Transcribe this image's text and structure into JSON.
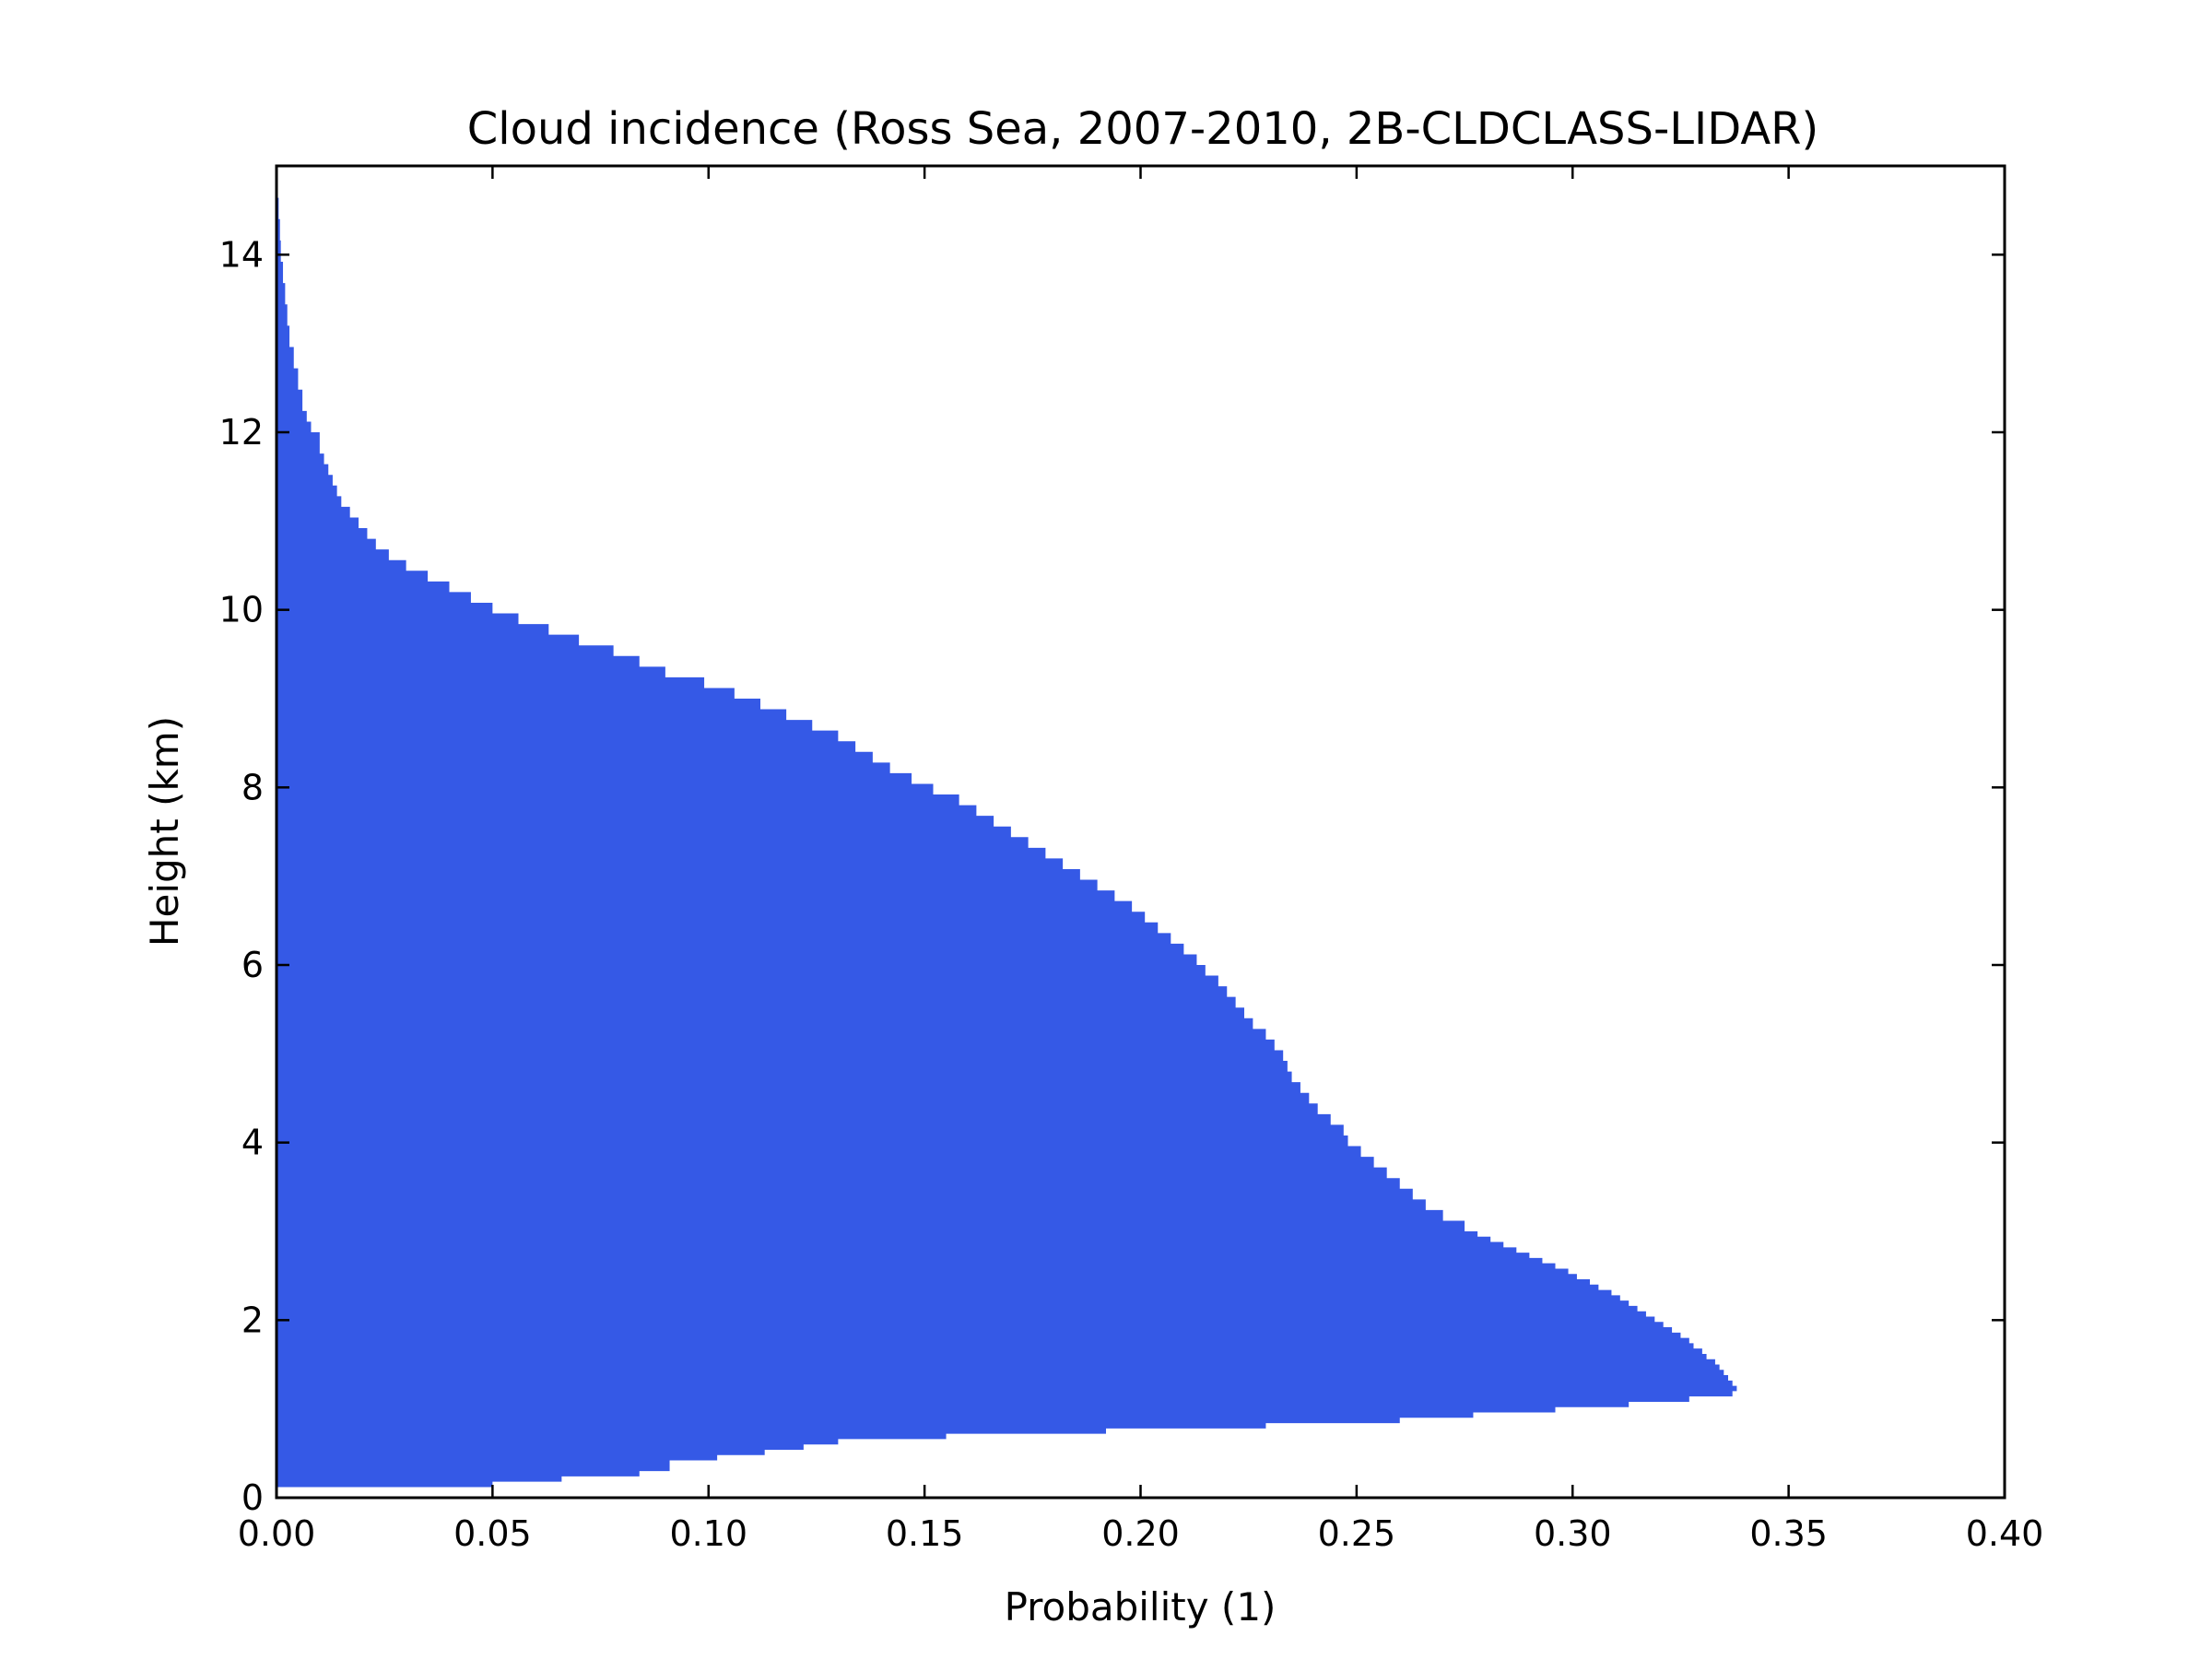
{
  "chart_data": {
    "type": "area",
    "orientation": "horizontal-step",
    "title": "Cloud incidence (Ross Sea, 2007-2010, 2B-CLDCLASS-LIDAR)",
    "xlabel": "Probability (1)",
    "ylabel": "Height (km)",
    "xlim": [
      0.0,
      0.4
    ],
    "ylim": [
      0,
      15
    ],
    "xticks": [
      "0.00",
      "0.05",
      "0.10",
      "0.15",
      "0.20",
      "0.25",
      "0.30",
      "0.35",
      "0.40"
    ],
    "yticks": [
      "0",
      "2",
      "4",
      "6",
      "8",
      "10",
      "12",
      "14"
    ],
    "grid": false,
    "legend": "none",
    "fill_color": "#3559e6",
    "series": [
      {
        "height_km": [
          0.0,
          0.12,
          0.18,
          0.24,
          0.3,
          0.42,
          0.48,
          0.54,
          0.6,
          0.66,
          0.72,
          0.78,
          0.84,
          0.9,
          0.96,
          1.02,
          1.08,
          1.14,
          1.2,
          1.26,
          1.32,
          1.38,
          1.44,
          1.5,
          1.56,
          1.62,
          1.68,
          1.74,
          1.8,
          1.86,
          1.92,
          1.98,
          2.04,
          2.1,
          2.16,
          2.22,
          2.28,
          2.34,
          2.4,
          2.46,
          2.52,
          2.58,
          2.64,
          2.7,
          2.76,
          2.82,
          2.88,
          2.94,
          3.0,
          3.12,
          3.24,
          3.36,
          3.48,
          3.6,
          3.72,
          3.84,
          3.96,
          4.08,
          4.2,
          4.32,
          4.44,
          4.56,
          4.68,
          4.8,
          4.92,
          5.04,
          5.16,
          5.28,
          5.4,
          5.52,
          5.64,
          5.76,
          5.88,
          6.0,
          6.12,
          6.24,
          6.36,
          6.48,
          6.6,
          6.72,
          6.84,
          6.96,
          7.08,
          7.2,
          7.32,
          7.44,
          7.56,
          7.68,
          7.8,
          7.92,
          8.04,
          8.16,
          8.28,
          8.4,
          8.52,
          8.64,
          8.76,
          8.88,
          9.0,
          9.12,
          9.24,
          9.36,
          9.48,
          9.6,
          9.72,
          9.84,
          9.96,
          10.08,
          10.2,
          10.32,
          10.44,
          10.56,
          10.68,
          10.8,
          10.92,
          11.04,
          11.16,
          11.28,
          11.4,
          11.52,
          11.64,
          11.76,
          11.88,
          12.0,
          12.12,
          12.24,
          12.48,
          12.72,
          12.96,
          13.2,
          13.44,
          13.68,
          13.92,
          14.16,
          14.4,
          14.64,
          14.88
        ],
        "probability": [
          0.0,
          0.05,
          0.066,
          0.084,
          0.091,
          0.102,
          0.113,
          0.122,
          0.13,
          0.155,
          0.192,
          0.229,
          0.26,
          0.277,
          0.296,
          0.313,
          0.327,
          0.337,
          0.338,
          0.337,
          0.336,
          0.335,
          0.334,
          0.333,
          0.331,
          0.33,
          0.328,
          0.327,
          0.325,
          0.323,
          0.321,
          0.319,
          0.317,
          0.315,
          0.313,
          0.311,
          0.309,
          0.306,
          0.304,
          0.301,
          0.299,
          0.296,
          0.293,
          0.29,
          0.287,
          0.284,
          0.281,
          0.278,
          0.275,
          0.27,
          0.266,
          0.263,
          0.26,
          0.257,
          0.254,
          0.251,
          0.248,
          0.247,
          0.244,
          0.241,
          0.239,
          0.237,
          0.235,
          0.234,
          0.233,
          0.231,
          0.229,
          0.226,
          0.224,
          0.222,
          0.22,
          0.218,
          0.215,
          0.213,
          0.21,
          0.207,
          0.204,
          0.201,
          0.198,
          0.194,
          0.19,
          0.186,
          0.182,
          0.178,
          0.174,
          0.17,
          0.166,
          0.162,
          0.158,
          0.152,
          0.147,
          0.142,
          0.138,
          0.134,
          0.13,
          0.124,
          0.118,
          0.112,
          0.106,
          0.099,
          0.09,
          0.084,
          0.078,
          0.07,
          0.063,
          0.056,
          0.05,
          0.045,
          0.04,
          0.035,
          0.03,
          0.026,
          0.023,
          0.021,
          0.019,
          0.017,
          0.015,
          0.014,
          0.013,
          0.012,
          0.011,
          0.01,
          0.01,
          0.008,
          0.007,
          0.006,
          0.005,
          0.004,
          0.003,
          0.0025,
          0.002,
          0.0015,
          0.001,
          0.0008,
          0.0005,
          0.0003,
          0.0001
        ]
      }
    ]
  }
}
